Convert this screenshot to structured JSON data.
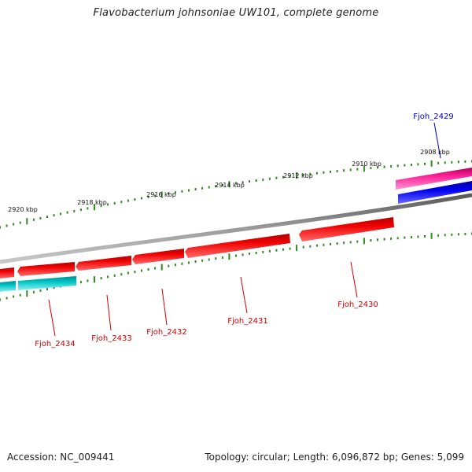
{
  "title": "Flavobacterium johnsoniae UW101, complete genome",
  "footer": {
    "accession": "Accession: NC_009441",
    "summary": "Topology: circular; Length: 6,096,872 bp; Genes: 5,099"
  },
  "colors": {
    "backbone": "#888888",
    "tick": "#2e8b1e",
    "forward_gene": "#ee0000",
    "reverse_gene": "#00bbbb",
    "highlight_forward": "#ff2299",
    "highlight_reverse": "#0000ee",
    "label_default": "#cc0000",
    "label_highlight": "#0000cc"
  },
  "scale_labels": [
    "2908 kbp",
    "2910 kbp",
    "2912 kbp",
    "2914 kbp",
    "2916 kbp",
    "2918 kbp",
    "2920 kbp"
  ],
  "gene_labels": [
    "Fjoh_2429",
    "Fjoh_2430",
    "Fjoh_2431",
    "Fjoh_2432",
    "Fjoh_2433",
    "Fjoh_2434"
  ]
}
